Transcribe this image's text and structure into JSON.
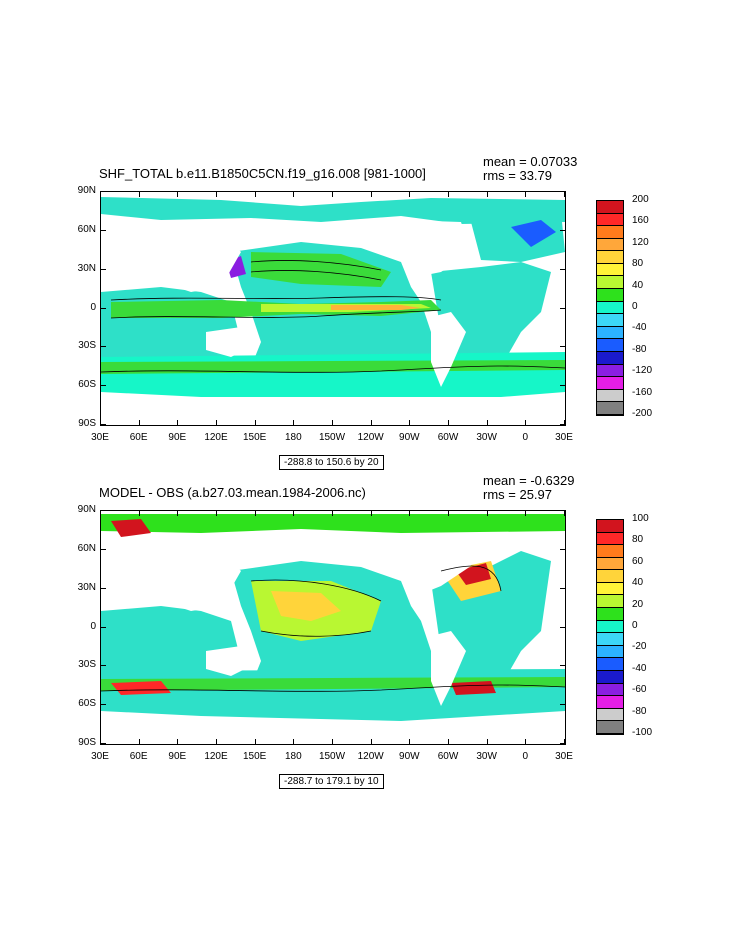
{
  "panels": [
    {
      "title": "SHF_TOTAL b.e11.B1850C5CN.f19_g16.008 [981-1000]",
      "mean": "mean = 0.07033",
      "rms": "rms = 33.79",
      "range_label": "-288.8 to 150.6 by 20",
      "colorbar_labels": [
        "200",
        "160",
        "120",
        "80",
        "40",
        "0",
        "-40",
        "-80",
        "-120",
        "-160",
        "-200"
      ]
    },
    {
      "title": "MODEL - OBS (a.b27.03.mean.1984-2006.nc)",
      "mean": "mean = -0.6329",
      "rms": "rms = 25.97",
      "range_label": "-288.7 to 179.1 by 10",
      "colorbar_labels": [
        "100",
        "80",
        "60",
        "40",
        "20",
        "0",
        "-20",
        "-40",
        "-60",
        "-80",
        "-100"
      ]
    }
  ],
  "lat_labels": [
    "90N",
    "60N",
    "30N",
    "0",
    "30S",
    "60S",
    "90S"
  ],
  "lon_labels": [
    "30E",
    "60E",
    "90E",
    "120E",
    "150E",
    "180",
    "150W",
    "120W",
    "90W",
    "60W",
    "30W",
    "0",
    "30E"
  ],
  "colors": {
    "bar_colors": [
      "#d2141e",
      "#ff2828",
      "#ff7b1c",
      "#ffa73a",
      "#ffd43a",
      "#fff338",
      "#b9f732",
      "#2ee11c",
      "#16f6c8",
      "#3cd7f7",
      "#2cb2ff",
      "#1a5cff",
      "#1a1acd",
      "#8a1ee1",
      "#e41ee6",
      "#cccccc",
      "#808080"
    ],
    "ocean_main": "#2ee0c8",
    "ocean_warm": "#3adb3a",
    "ocean_hot": "#ffb23a"
  }
}
